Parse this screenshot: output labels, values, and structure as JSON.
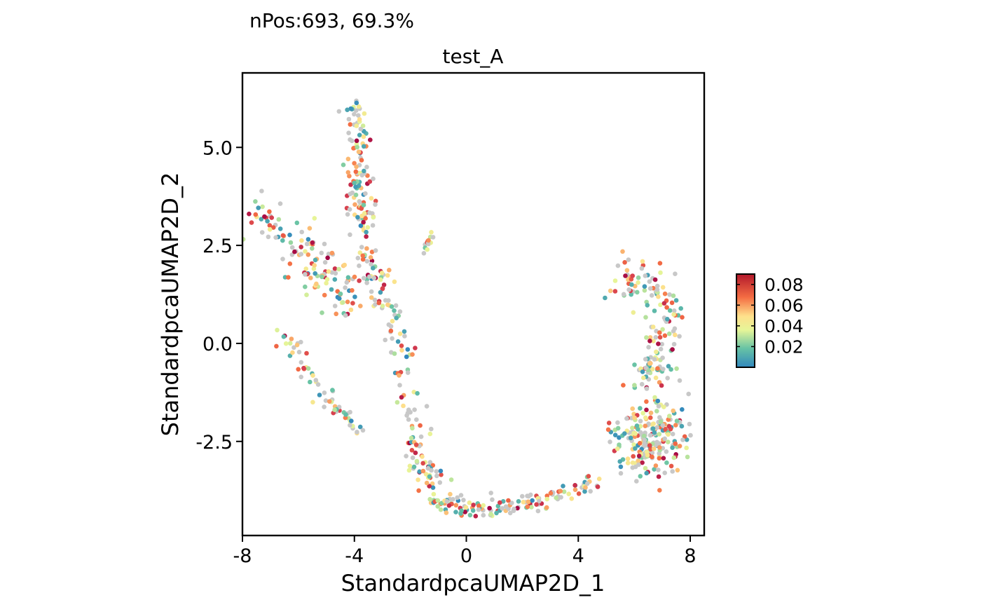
{
  "chart_data": {
    "type": "scatter",
    "subtitle": "nPos:693, 69.3%",
    "title": "test_A",
    "xlabel": "StandardpcaUMAP2D_1",
    "ylabel": "StandardpcaUMAP2D_2",
    "xlim": [
      -8,
      8.5
    ],
    "ylim": [
      -4.9,
      6.9
    ],
    "x_ticks": [
      -8,
      -4,
      0,
      4,
      8
    ],
    "x_tick_labels": [
      "-8",
      "-4",
      "0",
      "4",
      "8"
    ],
    "y_ticks": [
      -2.5,
      0,
      2.5,
      5
    ],
    "y_tick_labels": [
      "-2.5",
      "0.0",
      "2.5",
      "5.0"
    ],
    "grid": false,
    "legend": {
      "type": "colorbar",
      "placement": "right",
      "palette": "Spectral",
      "range": [
        0,
        0.09
      ],
      "ticks": [
        0.02,
        0.04,
        0.06,
        0.08
      ],
      "tick_labels": [
        "0.02",
        "0.04",
        "0.06",
        "0.08"
      ],
      "na_color": "#c8c8c8"
    },
    "point_count": 1000,
    "positive_count": 693,
    "positive_percent": 69.3,
    "clusters": [
      {
        "name": "upper-left stem",
        "xs": [
          -4.4,
          -3.6
        ],
        "ys": [
          3.0,
          6.2
        ]
      },
      {
        "name": "left branch",
        "xs": [
          -7.2,
          -4.0
        ],
        "ys": [
          0.5,
          3.4
        ]
      },
      {
        "name": "left diagonal tail",
        "xs": [
          -7.0,
          -3.5
        ],
        "ys": [
          -2.3,
          1.0
        ]
      },
      {
        "name": "descending trunk",
        "xs": [
          -3.8,
          -1.5
        ],
        "ys": [
          -4.0,
          1.8
        ]
      },
      {
        "name": "bottom arc",
        "xs": [
          -1.5,
          5.0
        ],
        "ys": [
          -4.4,
          -3.4
        ]
      },
      {
        "name": "small island",
        "xs": [
          -1.6,
          -1.0
        ],
        "ys": [
          2.2,
          2.8
        ]
      },
      {
        "name": "right upper cluster",
        "xs": [
          5.2,
          7.6
        ],
        "ys": [
          -0.8,
          1.8
        ]
      },
      {
        "name": "right lower cluster",
        "xs": [
          5.4,
          7.8
        ],
        "ys": [
          -3.5,
          -1.5
        ]
      }
    ]
  }
}
